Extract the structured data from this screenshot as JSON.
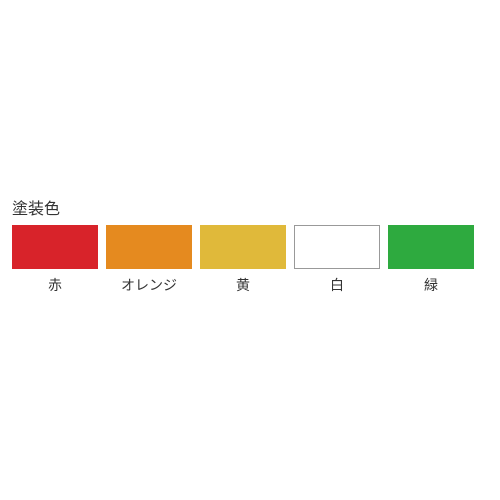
{
  "title": "塗装色",
  "swatches": [
    {
      "label": "赤",
      "color": "#d8232a",
      "border": false
    },
    {
      "label": "オレンジ",
      "color": "#e58a1f",
      "border": false
    },
    {
      "label": "黄",
      "color": "#e0b93a",
      "border": false
    },
    {
      "label": "白",
      "color": "#ffffff",
      "border": true
    },
    {
      "label": "緑",
      "color": "#2eaa3f",
      "border": false
    }
  ]
}
